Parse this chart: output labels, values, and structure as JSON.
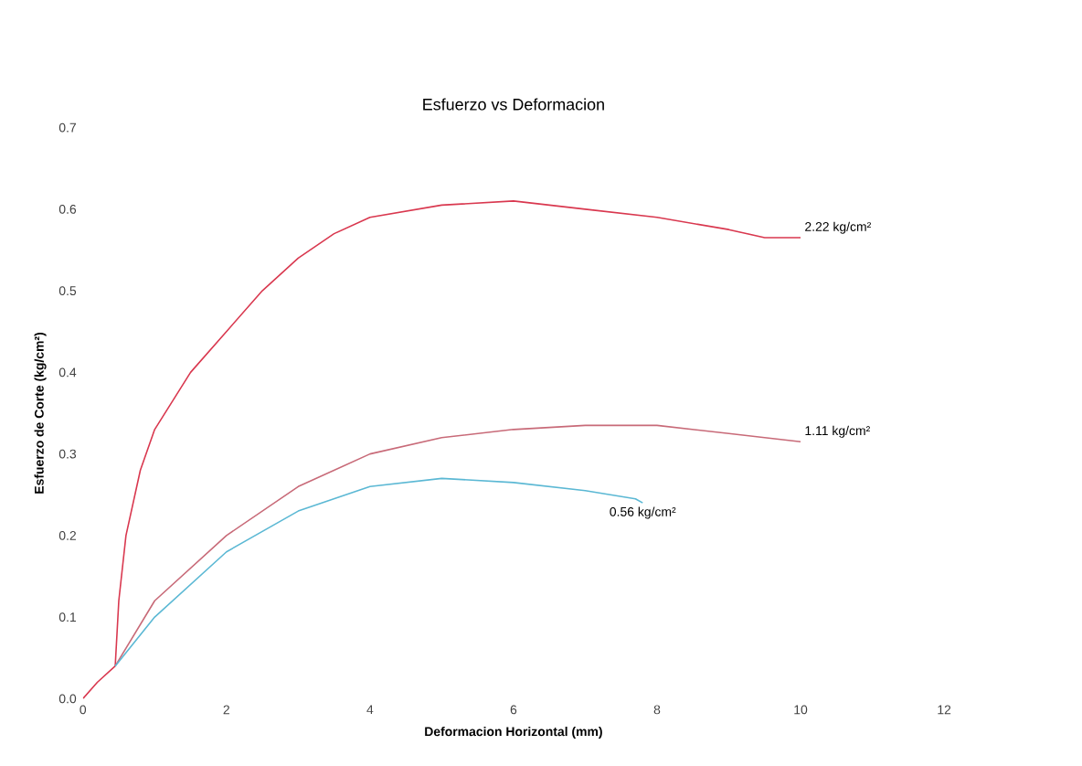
{
  "chart_data": {
    "type": "line",
    "title": "Esfuerzo vs Deformacion",
    "xlabel": "Deformacion Horizontal (mm)",
    "ylabel": "Esfuerzo de Corte (kg/cm²)",
    "xlim": [
      0,
      12
    ],
    "xticks": [
      0,
      2,
      4,
      6,
      8,
      10,
      12
    ],
    "ylim": [
      0,
      0.7
    ],
    "yticks": [
      {
        "value": 0,
        "label": "0.0"
      },
      0.1,
      0.2,
      0.3,
      0.4,
      0.5,
      0.6,
      0.7
    ],
    "grid": false,
    "legend": false,
    "marker": "none",
    "line_style": "solid",
    "series": [
      {
        "name": "2.22 kg/cm²",
        "color": "#d9384f",
        "x": [
          0,
          0.2,
          0.45,
          0.5,
          0.6,
          0.8,
          1,
          1.5,
          2,
          2.5,
          3,
          3.5,
          4,
          5,
          6,
          7,
          8,
          9,
          9.5,
          10
        ],
        "values": [
          0,
          0.02,
          0.04,
          0.12,
          0.2,
          0.28,
          0.33,
          0.4,
          0.45,
          0.5,
          0.54,
          0.57,
          0.59,
          0.605,
          0.61,
          0.6,
          0.59,
          0.575,
          0.565,
          0.565
        ]
      },
      {
        "name": "1.11 kg/cm²",
        "color": "#c86a78",
        "x": [
          0.45,
          1,
          2,
          3,
          4,
          5,
          6,
          7,
          8,
          9,
          10
        ],
        "values": [
          0.04,
          0.12,
          0.2,
          0.26,
          0.3,
          0.32,
          0.33,
          0.335,
          0.335,
          0.325,
          0.315
        ]
      },
      {
        "name": "0.56 kg/cm²",
        "color": "#5bb8d4",
        "x": [
          0.45,
          1,
          2,
          3,
          4,
          5,
          6,
          7,
          7.7,
          7.8
        ],
        "values": [
          0.04,
          0.1,
          0.18,
          0.23,
          0.26,
          0.27,
          0.265,
          0.255,
          0.245,
          0.24
        ]
      }
    ]
  }
}
